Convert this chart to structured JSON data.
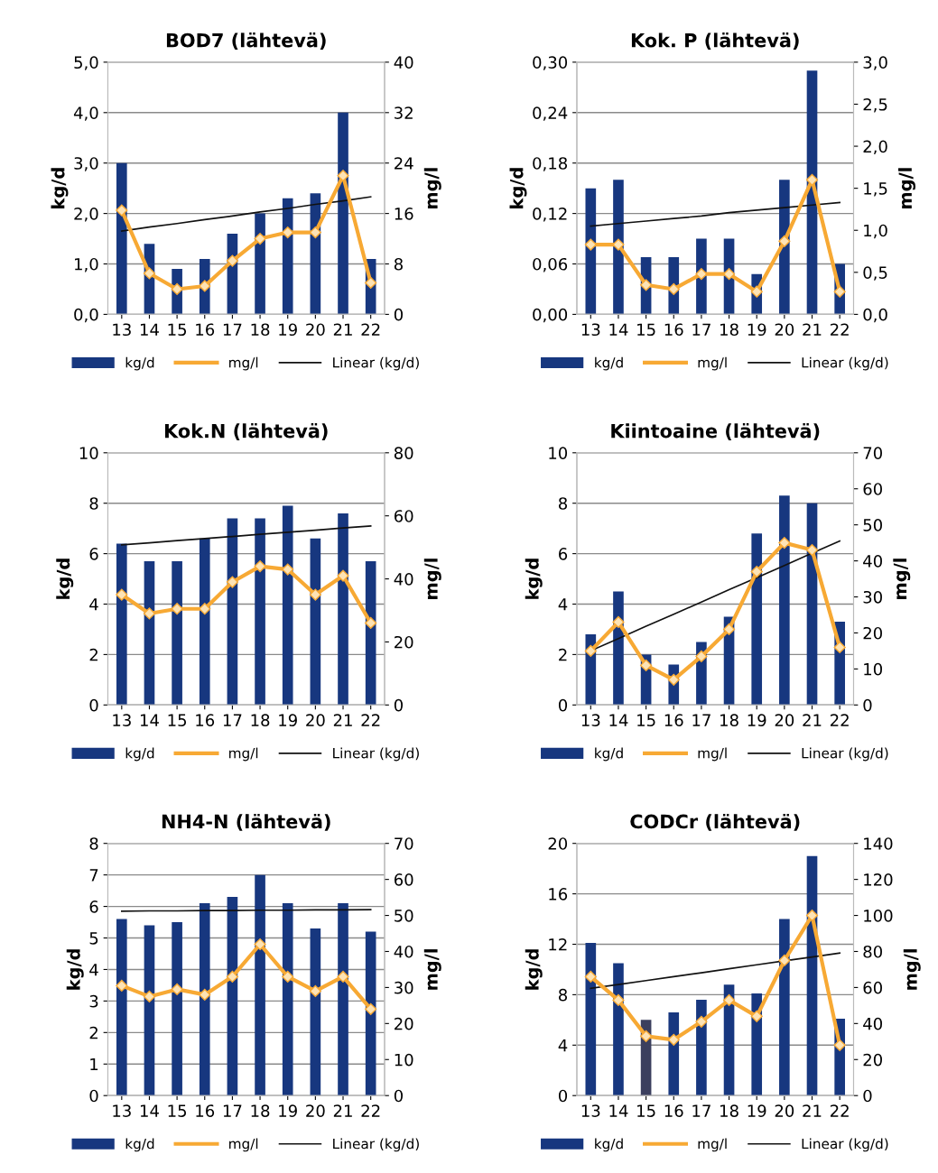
{
  "chart_data": [
    {
      "type": "bar",
      "title": "BOD7 (lähtevä)",
      "ylabel": "kg/d",
      "y2label": "mg/l",
      "categories": [
        "13",
        "14",
        "15",
        "16",
        "17",
        "18",
        "19",
        "20",
        "21",
        "22"
      ],
      "ylim": [
        0,
        5
      ],
      "yticks": [
        {
          "value": 0,
          "label": "0,0"
        },
        {
          "value": 1,
          "label": "1,0"
        },
        {
          "value": 2,
          "label": "2,0"
        },
        {
          "value": 3,
          "label": "3,0"
        },
        {
          "value": 4,
          "label": "4,0"
        },
        {
          "value": 5,
          "label": "5,0"
        }
      ],
      "y2lim": [
        0,
        40
      ],
      "y2ticks": [
        0,
        8,
        16,
        24,
        32,
        40
      ],
      "grid": "y",
      "legend": "bottom",
      "series": [
        {
          "name": "kg/d",
          "color": "#17377f",
          "values": [
            3.0,
            1.4,
            0.9,
            1.1,
            1.6,
            2.0,
            2.3,
            2.4,
            4.0,
            1.1
          ]
        },
        {
          "name": "mg/l",
          "type": "line",
          "axis": "y2",
          "color": "#f7a934",
          "marker": "diamond",
          "values": [
            16.5,
            6.5,
            4,
            4.5,
            8.5,
            12,
            13,
            13,
            22,
            5
          ]
        },
        {
          "name": "Linear (kg/d)",
          "type": "line",
          "color": "#111111",
          "values": [
            1.65,
            1.73,
            1.8,
            1.88,
            1.95,
            2.03,
            2.1,
            2.18,
            2.25,
            2.33
          ]
        }
      ]
    },
    {
      "type": "bar",
      "title": "Kok. P (lähtevä)",
      "ylabel": "kg/d",
      "y2label": "mg/l",
      "categories": [
        "13",
        "14",
        "15",
        "16",
        "17",
        "18",
        "19",
        "20",
        "21",
        "22"
      ],
      "ylim": [
        0,
        0.3
      ],
      "yticks": [
        {
          "value": 0,
          "label": "0,00"
        },
        {
          "value": 0.06,
          "label": "0,06"
        },
        {
          "value": 0.12,
          "label": "0,12"
        },
        {
          "value": 0.18,
          "label": "0,18"
        },
        {
          "value": 0.24,
          "label": "0,24"
        },
        {
          "value": 0.3,
          "label": "0,30"
        }
      ],
      "y2lim": [
        0,
        3
      ],
      "y2ticks": [
        {
          "value": 0,
          "label": "0,0"
        },
        {
          "value": 0.5,
          "label": "0,5"
        },
        {
          "value": 1,
          "label": "1,0"
        },
        {
          "value": 1.5,
          "label": "1,5"
        },
        {
          "value": 2,
          "label": "2,0"
        },
        {
          "value": 2.5,
          "label": "2,5"
        },
        {
          "value": 3,
          "label": "3,0"
        }
      ],
      "grid": "y",
      "legend": "bottom",
      "series": [
        {
          "name": "kg/d",
          "color": "#17377f",
          "values": [
            0.15,
            0.16,
            0.068,
            0.068,
            0.09,
            0.09,
            0.048,
            0.16,
            0.29,
            0.06
          ]
        },
        {
          "name": "mg/l",
          "type": "line",
          "axis": "y2",
          "color": "#f7a934",
          "marker": "diamond",
          "values": [
            0.83,
            0.83,
            0.35,
            0.3,
            0.48,
            0.48,
            0.27,
            0.87,
            1.6,
            0.27
          ]
        },
        {
          "name": "Linear (kg/d)",
          "type": "line",
          "color": "#111111",
          "values": [
            0.105,
            0.108,
            0.111,
            0.114,
            0.117,
            0.121,
            0.124,
            0.127,
            0.13,
            0.133
          ]
        }
      ]
    },
    {
      "type": "bar",
      "title": "Kok.N (lähtevä)",
      "ylabel": "kg/d",
      "y2label": "mg/l",
      "categories": [
        "13",
        "14",
        "15",
        "16",
        "17",
        "18",
        "19",
        "20",
        "21",
        "22"
      ],
      "ylim": [
        0,
        10
      ],
      "yticks": [
        0,
        2,
        4,
        6,
        8,
        10
      ],
      "y2lim": [
        0,
        80
      ],
      "y2ticks": [
        0,
        20,
        40,
        60,
        80
      ],
      "grid": "y",
      "legend": "bottom",
      "series": [
        {
          "name": "kg/d",
          "color": "#17377f",
          "values": [
            6.4,
            5.7,
            5.7,
            6.6,
            7.4,
            7.4,
            7.9,
            6.6,
            7.6,
            5.7
          ]
        },
        {
          "name": "mg/l",
          "type": "line",
          "axis": "y2",
          "color": "#f7a934",
          "marker": "diamond",
          "values": [
            35,
            29,
            30.5,
            30.5,
            39,
            44,
            43,
            35,
            41,
            26
          ]
        },
        {
          "name": "Linear (kg/d)",
          "type": "line",
          "color": "#111111",
          "values": [
            6.35,
            6.43,
            6.52,
            6.6,
            6.68,
            6.77,
            6.85,
            6.93,
            7.02,
            7.1
          ]
        }
      ]
    },
    {
      "type": "bar",
      "title": "Kiintoaine (lähtevä)",
      "ylabel": "kg/d",
      "y2label": "mg/l",
      "categories": [
        "13",
        "14",
        "15",
        "16",
        "17",
        "18",
        "19",
        "20",
        "21",
        "22"
      ],
      "ylim": [
        0,
        10
      ],
      "yticks": [
        0,
        2,
        4,
        6,
        8,
        10
      ],
      "y2lim": [
        0,
        70
      ],
      "y2ticks": [
        0,
        10,
        20,
        30,
        40,
        50,
        60,
        70
      ],
      "grid": "y",
      "legend": "bottom",
      "series": [
        {
          "name": "kg/d",
          "color": "#17377f",
          "values": [
            2.8,
            4.5,
            2.0,
            1.6,
            2.5,
            3.5,
            6.8,
            8.3,
            8.0,
            3.3
          ]
        },
        {
          "name": "mg/l",
          "type": "line",
          "axis": "y2",
          "color": "#f7a934",
          "marker": "diamond",
          "values": [
            15,
            23,
            11,
            7,
            13.5,
            21,
            37,
            45,
            43,
            16
          ]
        },
        {
          "name": "Linear (kg/d)",
          "type": "line",
          "color": "#111111",
          "values": [
            2.15,
            2.63,
            3.12,
            3.6,
            4.08,
            4.57,
            5.05,
            5.53,
            6.02,
            6.5
          ]
        }
      ]
    },
    {
      "type": "bar",
      "title": "NH4-N (lähtevä)",
      "ylabel": "kg/d",
      "y2label": "mg/l",
      "categories": [
        "13",
        "14",
        "15",
        "16",
        "17",
        "18",
        "19",
        "20",
        "21",
        "22"
      ],
      "ylim": [
        0,
        8
      ],
      "yticks": [
        0,
        1,
        2,
        3,
        4,
        5,
        6,
        7,
        8
      ],
      "y2lim": [
        0,
        70
      ],
      "y2ticks": [
        0,
        10,
        20,
        30,
        40,
        50,
        60,
        70
      ],
      "grid": "y",
      "legend": "bottom",
      "series": [
        {
          "name": "kg/d",
          "color": "#17377f",
          "values": [
            5.6,
            5.4,
            5.5,
            6.1,
            6.3,
            7.0,
            6.1,
            5.3,
            6.1,
            5.2
          ]
        },
        {
          "name": "mg/l",
          "type": "line",
          "axis": "y2",
          "color": "#f7a934",
          "marker": "diamond",
          "values": [
            30.5,
            27.5,
            29.5,
            28,
            33,
            42,
            33,
            29,
            33,
            24
          ]
        },
        {
          "name": "Linear (kg/d)",
          "type": "line",
          "color": "#111111",
          "values": [
            5.85,
            5.86,
            5.86,
            5.87,
            5.87,
            5.88,
            5.88,
            5.89,
            5.89,
            5.9
          ]
        }
      ]
    },
    {
      "type": "bar",
      "title": "CODCr (lähtevä)",
      "ylabel": "kg/d",
      "y2label": "mg/l",
      "categories": [
        "13",
        "14",
        "15",
        "16",
        "17",
        "18",
        "19",
        "20",
        "21",
        "22"
      ],
      "ylim": [
        0,
        20
      ],
      "yticks": [
        0,
        4,
        8,
        12,
        16,
        20
      ],
      "y2lim": [
        0,
        140
      ],
      "y2ticks": [
        0,
        20,
        40,
        60,
        80,
        100,
        120,
        140
      ],
      "grid": "y",
      "legend": "bottom",
      "series": [
        {
          "name": "kg/d",
          "color": "#17377f",
          "colors": [
            "#17377f",
            "#17377f",
            "#3b3f5e",
            "#17377f",
            "#17377f",
            "#17377f",
            "#17377f",
            "#17377f",
            "#17377f",
            "#17377f"
          ],
          "values": [
            12.1,
            10.5,
            6.0,
            6.6,
            7.6,
            8.8,
            8.1,
            14.0,
            19.0,
            6.1
          ]
        },
        {
          "name": "mg/l",
          "type": "line",
          "axis": "y2",
          "color": "#f7a934",
          "marker": "diamond",
          "values": [
            66,
            53,
            33,
            31,
            41,
            53,
            44,
            75,
            100,
            28
          ]
        },
        {
          "name": "Linear (kg/d)",
          "type": "line",
          "color": "#111111",
          "values": [
            8.5,
            8.81,
            9.12,
            9.43,
            9.74,
            10.06,
            10.37,
            10.68,
            10.99,
            11.3
          ]
        }
      ]
    }
  ]
}
